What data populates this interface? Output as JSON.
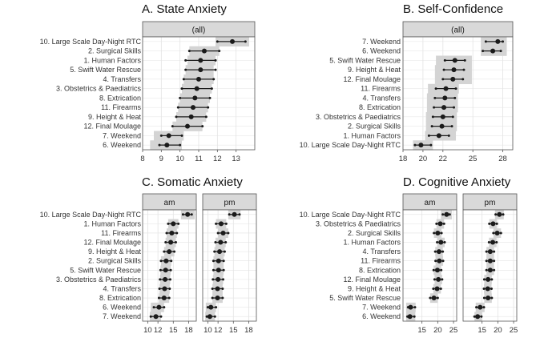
{
  "colors": {
    "panel_bg": "#ffffff",
    "grid": "#e3e3e3",
    "strip": "#d9d9d9",
    "ci_band": "#d4d4d4",
    "point": "#1a1a1a",
    "border": "#555555"
  },
  "chart_data": [
    {
      "type": "dot_interval",
      "title": "A. State Anxiety",
      "xlim": [
        8,
        14
      ],
      "xticks": [
        8,
        9,
        10,
        11,
        12,
        13
      ],
      "facets": [
        {
          "strip": "(all)",
          "rows": [
            {
              "label": "10. Large Scale Day-Night RTC",
              "value": 12.8,
              "low": 12.0,
              "high": 13.5,
              "band_low": 11.9,
              "band_high": 13.7
            },
            {
              "label": "2. Surgical Skills",
              "value": 11.3,
              "low": 10.5,
              "high": 12.1,
              "band_low": 10.5,
              "band_high": 12.1
            },
            {
              "label": "1. Human Factors",
              "value": 11.1,
              "low": 10.3,
              "high": 11.9,
              "band_low": 10.4,
              "band_high": 11.9
            },
            {
              "label": "5. Swift Water Rescue",
              "value": 11.1,
              "low": 10.3,
              "high": 11.9,
              "band_low": 10.3,
              "band_high": 11.8
            },
            {
              "label": "4. Transfers",
              "value": 11.0,
              "low": 10.2,
              "high": 11.8,
              "band_low": 10.2,
              "band_high": 11.8
            },
            {
              "label": "3. Obstetrics & Paediatrics",
              "value": 10.9,
              "low": 10.1,
              "high": 11.7,
              "band_low": 10.1,
              "band_high": 11.7
            },
            {
              "label": "8. Extrication",
              "value": 10.8,
              "low": 10.0,
              "high": 11.6,
              "band_low": 10.0,
              "band_high": 11.6
            },
            {
              "label": "11. Firearms",
              "value": 10.7,
              "low": 9.9,
              "high": 11.5,
              "band_low": 9.9,
              "band_high": 11.5
            },
            {
              "label": "9. Height & Heat",
              "value": 10.6,
              "low": 9.8,
              "high": 11.4,
              "band_low": 9.8,
              "band_high": 11.4
            },
            {
              "label": "12. Final Moulage",
              "value": 10.4,
              "low": 9.6,
              "high": 11.2,
              "band_low": 9.6,
              "band_high": 11.2
            },
            {
              "label": "7. Weekend",
              "value": 9.4,
              "low": 9.0,
              "high": 10.1,
              "band_low": 8.6,
              "band_high": 10.2
            },
            {
              "label": "6. Weekend",
              "value": 9.3,
              "low": 8.9,
              "high": 10.0,
              "band_low": 8.4,
              "band_high": 10.1
            }
          ]
        }
      ]
    },
    {
      "type": "dot_interval",
      "title": "B. Self-Confidence",
      "xlim": [
        18,
        29
      ],
      "xticks": [
        18,
        20,
        22,
        25,
        28
      ],
      "facets": [
        {
          "strip": "(all)",
          "rows": [
            {
              "label": "7. Weekend",
              "value": 27.5,
              "low": 26.3,
              "high": 28.0,
              "band_low": 25.8,
              "band_high": 28.4
            },
            {
              "label": "6. Weekend",
              "value": 27.0,
              "low": 26.0,
              "high": 27.8,
              "band_low": 25.8,
              "band_high": 28.4
            },
            {
              "label": "5. Swift Water Rescue",
              "value": 23.2,
              "low": 22.2,
              "high": 24.2,
              "band_low": 21.3,
              "band_high": 24.9
            },
            {
              "label": "9. Height & Heat",
              "value": 23.1,
              "low": 22.1,
              "high": 24.1,
              "band_low": 21.2,
              "band_high": 24.9
            },
            {
              "label": "12. Final Moulage",
              "value": 23.0,
              "low": 22.0,
              "high": 24.0,
              "band_low": 21.2,
              "band_high": 24.9
            },
            {
              "label": "11. Firearms",
              "value": 22.3,
              "low": 21.3,
              "high": 23.3,
              "band_low": 20.5,
              "band_high": 23.6
            },
            {
              "label": "4. Transfers",
              "value": 22.2,
              "low": 21.2,
              "high": 23.2,
              "band_low": 20.4,
              "band_high": 23.5
            },
            {
              "label": "8. Extrication",
              "value": 22.1,
              "low": 21.1,
              "high": 23.1,
              "band_low": 20.4,
              "band_high": 23.5
            },
            {
              "label": "3. Obstetrics & Paediatrics",
              "value": 22.0,
              "low": 21.0,
              "high": 23.0,
              "band_low": 20.3,
              "band_high": 23.4
            },
            {
              "label": "2. Surgical Skills",
              "value": 21.9,
              "low": 20.9,
              "high": 22.9,
              "band_low": 20.3,
              "band_high": 23.4
            },
            {
              "label": "1. Human Factors",
              "value": 21.6,
              "low": 20.6,
              "high": 22.6,
              "band_low": 20.2,
              "band_high": 23.3
            },
            {
              "label": "10. Large Scale Day-Night RTC",
              "value": 19.8,
              "low": 19.2,
              "high": 20.8,
              "band_low": 19.0,
              "band_high": 21.0
            }
          ]
        }
      ]
    },
    {
      "type": "dot_interval",
      "title": "C. Somatic Anxiety",
      "xlim": [
        9,
        19.5
      ],
      "xticks": [
        10,
        12,
        15,
        18
      ],
      "facets": [
        {
          "strip": "am",
          "rows": [
            {
              "label": "10. Large Scale Day-Night RTC",
              "value": 17.8,
              "low": 16.9,
              "high": 18.6,
              "band_low": 16.5,
              "band_high": 19.2
            },
            {
              "label": "1. Human Factors",
              "value": 15.0,
              "low": 14.0,
              "high": 16.0,
              "band_low": 14.0,
              "band_high": 16.0
            },
            {
              "label": "11. Firearms",
              "value": 14.7,
              "low": 13.7,
              "high": 15.7,
              "band_low": 13.7,
              "band_high": 15.7
            },
            {
              "label": "12. Final Moulage",
              "value": 14.5,
              "low": 13.5,
              "high": 15.5,
              "band_low": 13.5,
              "band_high": 15.5
            },
            {
              "label": "9. Height & Heat",
              "value": 14.2,
              "low": 13.2,
              "high": 15.2,
              "band_low": 13.2,
              "band_high": 15.2
            },
            {
              "label": "2. Surgical Skills",
              "value": 13.6,
              "low": 12.6,
              "high": 14.6,
              "band_low": 12.6,
              "band_high": 14.6
            },
            {
              "label": "5. Swift Water Rescue",
              "value": 13.5,
              "low": 12.5,
              "high": 14.5,
              "band_low": 12.5,
              "band_high": 14.5
            },
            {
              "label": "3. Obstetrics & Paediatrics",
              "value": 13.4,
              "low": 12.4,
              "high": 14.4,
              "band_low": 12.4,
              "band_high": 14.4
            },
            {
              "label": "4. Transfers",
              "value": 13.3,
              "low": 12.3,
              "high": 14.3,
              "band_low": 12.3,
              "band_high": 14.3
            },
            {
              "label": "8. Extrication",
              "value": 13.2,
              "low": 12.2,
              "high": 14.2,
              "band_low": 12.2,
              "band_high": 14.2
            },
            {
              "label": "6. Weekend",
              "value": 12.2,
              "low": 11.2,
              "high": 13.2,
              "band_low": 10.6,
              "band_high": 13.2
            },
            {
              "label": "7. Weekend",
              "value": 11.6,
              "low": 10.6,
              "high": 12.6,
              "band_low": 10.4,
              "band_high": 12.6
            }
          ]
        },
        {
          "strip": "pm",
          "rows": [
            {
              "label": "10. Large Scale Day-Night RTC",
              "value": 15.2,
              "low": 14.2,
              "high": 16.2,
              "band_low": 14.0,
              "band_high": 16.4
            },
            {
              "label": "1. Human Factors",
              "value": 12.6,
              "low": 11.6,
              "high": 13.6,
              "band_low": 11.6,
              "band_high": 13.6
            },
            {
              "label": "11. Firearms",
              "value": 13.0,
              "low": 12.0,
              "high": 14.0,
              "band_low": 12.0,
              "band_high": 14.0
            },
            {
              "label": "12. Final Moulage",
              "value": 12.5,
              "low": 11.5,
              "high": 13.5,
              "band_low": 11.5,
              "band_high": 13.5
            },
            {
              "label": "9. Height & Heat",
              "value": 12.3,
              "low": 11.3,
              "high": 13.3,
              "band_low": 11.3,
              "band_high": 13.3
            },
            {
              "label": "2. Surgical Skills",
              "value": 12.1,
              "low": 11.1,
              "high": 13.1,
              "band_low": 11.1,
              "band_high": 13.1
            },
            {
              "label": "5. Swift Water Rescue",
              "value": 12.1,
              "low": 11.1,
              "high": 13.1,
              "band_low": 11.1,
              "band_high": 13.1
            },
            {
              "label": "3. Obstetrics & Paediatrics",
              "value": 12.0,
              "low": 11.0,
              "high": 13.0,
              "band_low": 11.0,
              "band_high": 13.0
            },
            {
              "label": "4. Transfers",
              "value": 11.9,
              "low": 10.9,
              "high": 12.9,
              "band_low": 10.9,
              "band_high": 12.9
            },
            {
              "label": "8. Extrication",
              "value": 11.9,
              "low": 10.9,
              "high": 12.9,
              "band_low": 10.9,
              "band_high": 12.9
            },
            {
              "label": "6. Weekend",
              "value": 10.6,
              "low": 10.0,
              "high": 11.6,
              "band_low": 9.6,
              "band_high": 11.6
            },
            {
              "label": "7. Weekend",
              "value": 10.4,
              "low": 9.8,
              "high": 11.4,
              "band_low": 9.5,
              "band_high": 11.4
            }
          ]
        }
      ]
    },
    {
      "type": "dot_interval",
      "title": "D. Cognitive Anxiety",
      "xlim": [
        9,
        26
      ],
      "xticks": [
        15,
        20,
        25
      ],
      "facets": [
        {
          "strip": "am",
          "rows": [
            {
              "label": "10. Large Scale Day-Night RTC",
              "value": 22.8,
              "low": 21.6,
              "high": 23.8,
              "band_low": 21.0,
              "band_high": 24.5
            },
            {
              "label": "3. Obstetrics & Paediatrics",
              "value": 20.8,
              "low": 19.6,
              "high": 22.0,
              "band_low": 19.6,
              "band_high": 22.0
            },
            {
              "label": "2. Surgical Skills",
              "value": 20.0,
              "low": 18.8,
              "high": 21.2,
              "band_low": 18.8,
              "band_high": 21.2
            },
            {
              "label": "1. Human Factors",
              "value": 21.0,
              "low": 19.8,
              "high": 22.2,
              "band_low": 19.8,
              "band_high": 22.2
            },
            {
              "label": "4. Transfers",
              "value": 20.4,
              "low": 19.2,
              "high": 21.6,
              "band_low": 19.2,
              "band_high": 21.6
            },
            {
              "label": "11. Firearms",
              "value": 20.5,
              "low": 19.3,
              "high": 21.7,
              "band_low": 19.3,
              "band_high": 21.7
            },
            {
              "label": "8. Extrication",
              "value": 19.9,
              "low": 18.7,
              "high": 21.1,
              "band_low": 18.7,
              "band_high": 21.1
            },
            {
              "label": "12. Final Moulage",
              "value": 20.2,
              "low": 19.0,
              "high": 21.4,
              "band_low": 19.0,
              "band_high": 21.4
            },
            {
              "label": "9. Height & Heat",
              "value": 19.8,
              "low": 18.6,
              "high": 21.0,
              "band_low": 18.6,
              "band_high": 21.0
            },
            {
              "label": "5. Swift Water Rescue",
              "value": 18.8,
              "low": 17.6,
              "high": 20.0,
              "band_low": 17.6,
              "band_high": 20.0
            },
            {
              "label": "7. Weekend",
              "value": 11.4,
              "low": 10.6,
              "high": 12.8,
              "band_low": 10.0,
              "band_high": 13.0
            },
            {
              "label": "6. Weekend",
              "value": 11.2,
              "low": 10.4,
              "high": 12.6,
              "band_low": 10.0,
              "band_high": 12.9
            }
          ]
        },
        {
          "strip": "pm",
          "rows": [
            {
              "label": "10. Large Scale Day-Night RTC",
              "value": 20.5,
              "low": 19.3,
              "high": 21.7,
              "band_low": 19.1,
              "band_high": 21.9
            },
            {
              "label": "3. Obstetrics & Paediatrics",
              "value": 18.5,
              "low": 17.3,
              "high": 19.7,
              "band_low": 17.3,
              "band_high": 19.7
            },
            {
              "label": "2. Surgical Skills",
              "value": 19.8,
              "low": 18.6,
              "high": 21.0,
              "band_low": 18.6,
              "band_high": 21.0
            },
            {
              "label": "1. Human Factors",
              "value": 18.4,
              "low": 17.2,
              "high": 19.6,
              "band_low": 17.2,
              "band_high": 19.6
            },
            {
              "label": "4. Transfers",
              "value": 17.6,
              "low": 16.4,
              "high": 18.8,
              "band_low": 16.4,
              "band_high": 18.8
            },
            {
              "label": "11. Firearms",
              "value": 17.6,
              "low": 16.4,
              "high": 18.8,
              "band_low": 16.4,
              "band_high": 18.8
            },
            {
              "label": "8. Extrication",
              "value": 17.6,
              "low": 16.4,
              "high": 18.8,
              "band_low": 16.4,
              "band_high": 18.8
            },
            {
              "label": "12. Final Moulage",
              "value": 16.9,
              "low": 15.7,
              "high": 18.1,
              "band_low": 15.7,
              "band_high": 18.1
            },
            {
              "label": "9. Height & Heat",
              "value": 16.8,
              "low": 15.6,
              "high": 18.0,
              "band_low": 15.6,
              "band_high": 18.0
            },
            {
              "label": "5. Swift Water Rescue",
              "value": 16.9,
              "low": 15.7,
              "high": 18.1,
              "band_low": 15.7,
              "band_high": 18.1
            },
            {
              "label": "7. Weekend",
              "value": 14.4,
              "low": 13.2,
              "high": 15.6,
              "band_low": 13.0,
              "band_high": 15.8
            },
            {
              "label": "6. Weekend",
              "value": 13.6,
              "low": 12.6,
              "high": 14.8,
              "band_low": 12.6,
              "band_high": 15.0
            }
          ]
        }
      ]
    }
  ]
}
